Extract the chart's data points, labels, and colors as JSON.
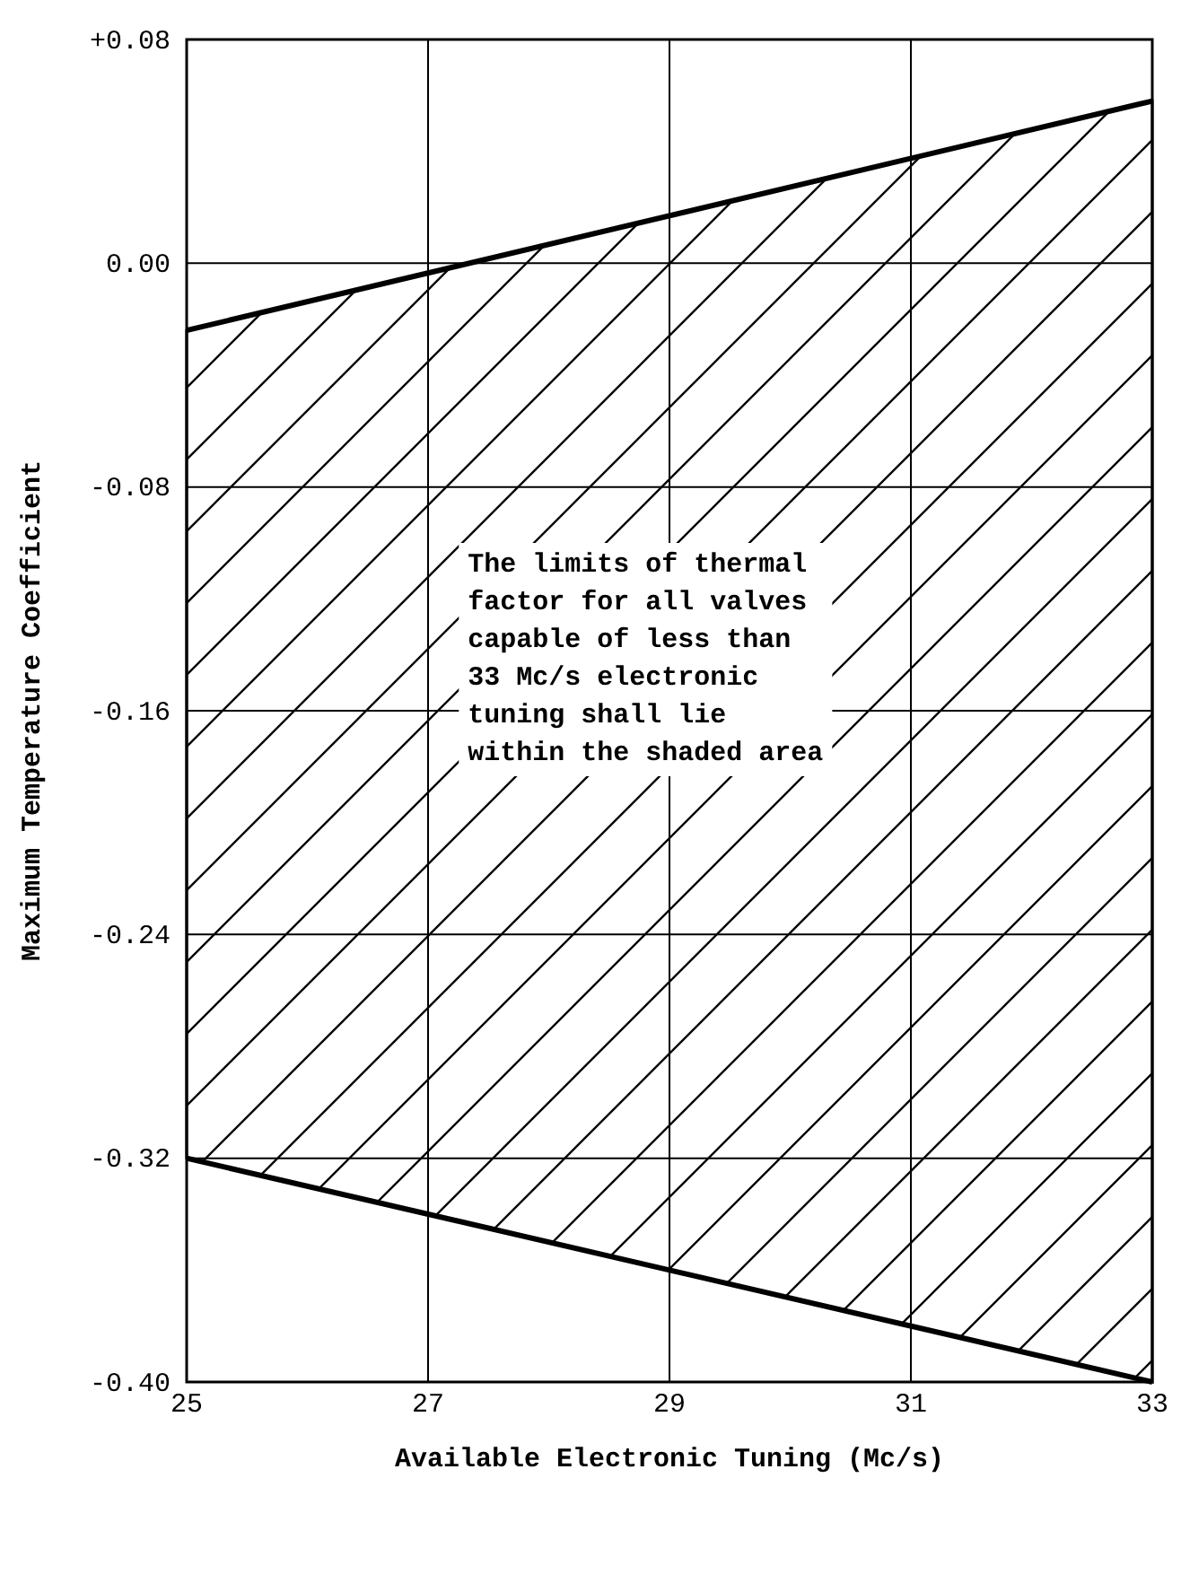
{
  "chart_data": {
    "type": "line",
    "xlabel": "Available Electronic Tuning (Mc/s)",
    "ylabel": "Maximum Temperature Coefficient",
    "x": [
      25,
      33
    ],
    "series": [
      {
        "color": "#000000",
        "values": [
          -0.024,
          0.058
        ],
        "lower": [
          -0.32,
          -0.4
        ],
        "upper": [
          -0.024,
          0.058
        ]
      },
      {
        "color": "#000000",
        "values": [
          -0.32,
          -0.4
        ]
      }
    ],
    "xlim": [
      25,
      33
    ],
    "xticks": [
      25,
      27,
      29,
      31,
      33
    ],
    "ylim": [
      -0.4,
      0.08
    ],
    "yticks": [
      {
        "value": 0.08,
        "label": "+0.08"
      },
      {
        "value": 0,
        "label": "0.00"
      },
      {
        "value": -0.08,
        "label": "-0.08"
      },
      {
        "value": -0.16,
        "label": "-0.16"
      },
      {
        "value": -0.24,
        "label": "-0.24"
      },
      {
        "value": -0.32,
        "label": "-0.32"
      },
      {
        "value": -0.4,
        "label": "-0.40"
      }
    ],
    "grid": true,
    "marker": "none",
    "line_style": "solid",
    "annotations": [
      "The limits of thermal\nfactor for all valves\ncapable of less than\n33 Mc/s electronic\ntuning shall lie\nwithin the shaded area"
    ]
  }
}
